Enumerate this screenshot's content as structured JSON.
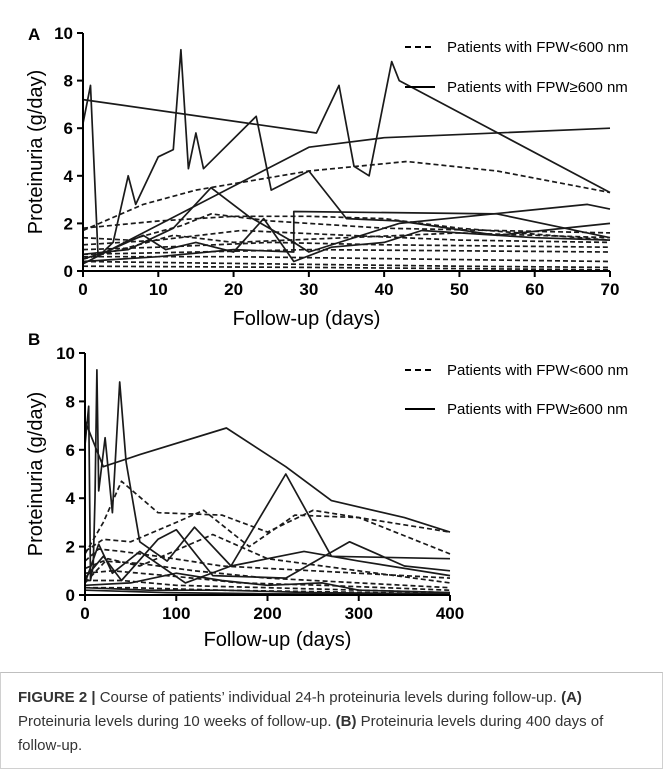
{
  "chart_data": [
    {
      "type": "line",
      "panel_label": "A",
      "xlabel": "Follow-up (days)",
      "ylabel": "Proteinuria (g/day)",
      "xlim": [
        0,
        70
      ],
      "ylim": [
        0,
        10
      ],
      "xticks": [
        "0",
        "10",
        "20",
        "30",
        "40",
        "50",
        "60",
        "70"
      ],
      "yticks": [
        "0",
        "2",
        "4",
        "6",
        "8",
        "10"
      ],
      "legend_position": "top-right",
      "legend": [
        {
          "label": "Patients with FPW<600 nm",
          "style": "dashed"
        },
        {
          "label": "Patients with FPW≥600 nm",
          "style": "solid"
        }
      ],
      "series": [
        {
          "style": "dashed",
          "points": [
            [
              0,
              1.8
            ],
            [
              10,
              2.1
            ],
            [
              20,
              2.3
            ],
            [
              30,
              2.3
            ],
            [
              40,
              2.2
            ],
            [
              50,
              1.8
            ],
            [
              70,
              1.3
            ]
          ]
        },
        {
          "style": "dashed",
          "points": [
            [
              0,
              1.7
            ],
            [
              8,
              2.8
            ],
            [
              15,
              3.4
            ],
            [
              30,
              4.2
            ],
            [
              43,
              4.6
            ],
            [
              55,
              4.2
            ],
            [
              70,
              3.3
            ]
          ]
        },
        {
          "style": "dashed",
          "points": [
            [
              0,
              1.4
            ],
            [
              6,
              1.3
            ],
            [
              13,
              1.9
            ],
            [
              17,
              2.4
            ],
            [
              25,
              2.1
            ],
            [
              40,
              1.8
            ],
            [
              70,
              1.6
            ]
          ]
        },
        {
          "style": "dashed",
          "points": [
            [
              0,
              1.1
            ],
            [
              10,
              1.3
            ],
            [
              21,
              1.7
            ],
            [
              35,
              1.5
            ],
            [
              50,
              1.3
            ],
            [
              70,
              1.2
            ]
          ]
        },
        {
          "style": "dashed",
          "points": [
            [
              0,
              0.9
            ],
            [
              10,
              1.0
            ],
            [
              25,
              1.2
            ],
            [
              40,
              1.1
            ],
            [
              70,
              1.0
            ]
          ]
        },
        {
          "style": "dashed",
          "points": [
            [
              0,
              0.7
            ],
            [
              15,
              0.8
            ],
            [
              30,
              0.9
            ],
            [
              70,
              0.8
            ]
          ]
        },
        {
          "style": "dashed",
          "points": [
            [
              0,
              0.6
            ],
            [
              20,
              0.6
            ],
            [
              45,
              0.5
            ],
            [
              70,
              0.4
            ]
          ]
        },
        {
          "style": "dashed",
          "points": [
            [
              0,
              0.4
            ],
            [
              25,
              0.3
            ],
            [
              50,
              0.2
            ],
            [
              70,
              0.15
            ]
          ]
        },
        {
          "style": "dashed",
          "points": [
            [
              0,
              0.2
            ],
            [
              30,
              0.15
            ],
            [
              70,
              0.05
            ]
          ]
        },
        {
          "style": "dashed",
          "points": [
            [
              0,
              0.5
            ],
            [
              5,
              0.9
            ],
            [
              12,
              1.5
            ],
            [
              20,
              1.2
            ],
            [
              35,
              1.4
            ],
            [
              50,
              1.6
            ],
            [
              70,
              1.4
            ]
          ]
        },
        {
          "style": "solid",
          "points": [
            [
              0,
              7.2
            ],
            [
              31,
              5.8
            ],
            [
              34,
              7.8
            ],
            [
              36,
              4.4
            ],
            [
              38,
              4.0
            ],
            [
              41,
              8.8
            ],
            [
              42,
              8.0
            ],
            [
              70,
              3.3
            ]
          ]
        },
        {
          "style": "solid",
          "points": [
            [
              0,
              6.2
            ],
            [
              1,
              7.8
            ],
            [
              2,
              0.6
            ],
            [
              4,
              1.2
            ],
            [
              6,
              4.0
            ],
            [
              7,
              2.8
            ],
            [
              10,
              4.8
            ],
            [
              12,
              5.1
            ],
            [
              13,
              9.3
            ],
            [
              14,
              4.3
            ],
            [
              15,
              5.8
            ],
            [
              16,
              4.3
            ],
            [
              23,
              6.5
            ],
            [
              25,
              3.4
            ],
            [
              30,
              4.2
            ],
            [
              35,
              2.2
            ],
            [
              42,
              2.1
            ],
            [
              55,
              1.5
            ],
            [
              70,
              2.0
            ]
          ]
        },
        {
          "style": "solid",
          "points": [
            [
              0,
              0.5
            ],
            [
              3,
              0.8
            ],
            [
              8,
              1.5
            ],
            [
              11,
              0.9
            ],
            [
              15,
              1.2
            ],
            [
              20,
              0.8
            ],
            [
              24,
              2.2
            ],
            [
              28,
              0.4
            ],
            [
              33,
              1.0
            ],
            [
              40,
              1.2
            ],
            [
              45,
              1.7
            ],
            [
              60,
              1.4
            ],
            [
              70,
              1.3
            ]
          ]
        },
        {
          "style": "solid",
          "points": [
            [
              0,
              0.7
            ],
            [
              6,
              0.9
            ],
            [
              12,
              1.8
            ],
            [
              17,
              3.5
            ],
            [
              22,
              2.3
            ],
            [
              28,
              1.2
            ],
            [
              30,
              0.8
            ],
            [
              42,
              2.0
            ],
            [
              67,
              2.8
            ],
            [
              70,
              2.6
            ]
          ]
        },
        {
          "style": "solid",
          "points": [
            [
              0,
              0.4
            ],
            [
              10,
              0.6
            ],
            [
              20,
              0.9
            ],
            [
              28,
              0.8
            ],
            [
              28,
              2.5
            ],
            [
              55,
              2.4
            ],
            [
              70,
              1.4
            ]
          ]
        },
        {
          "style": "solid",
          "points": [
            [
              0,
              0.3
            ],
            [
              30,
              5.2
            ],
            [
              40,
              5.6
            ],
            [
              70,
              6.0
            ]
          ]
        }
      ]
    },
    {
      "type": "line",
      "panel_label": "B",
      "xlabel": "Follow-up (days)",
      "ylabel": "Proteinuria (g/day)",
      "xlim": [
        0,
        400
      ],
      "ylim": [
        0,
        10
      ],
      "xticks": [
        "0",
        "100",
        "200",
        "300",
        "400"
      ],
      "yticks": [
        "0",
        "2",
        "4",
        "6",
        "8",
        "10"
      ],
      "legend_position": "top-right",
      "legend": [
        {
          "label": "Patients with FPW<600 nm",
          "style": "dashed"
        },
        {
          "label": "Patients with FPW≥600 nm",
          "style": "solid"
        }
      ],
      "series": [
        {
          "style": "dashed",
          "points": [
            [
              0,
              1.7
            ],
            [
              20,
              3.0
            ],
            [
              40,
              4.7
            ],
            [
              80,
              3.4
            ],
            [
              150,
              3.3
            ],
            [
              200,
              2.6
            ],
            [
              250,
              3.5
            ],
            [
              400,
              2.6
            ]
          ]
        },
        {
          "style": "dashed",
          "points": [
            [
              0,
              1.8
            ],
            [
              20,
              2.3
            ],
            [
              50,
              2.2
            ],
            [
              100,
              3.0
            ],
            [
              130,
              3.5
            ],
            [
              180,
              2.0
            ],
            [
              230,
              3.3
            ],
            [
              300,
              3.2
            ],
            [
              400,
              1.7
            ]
          ]
        },
        {
          "style": "dashed",
          "points": [
            [
              0,
              1.4
            ],
            [
              15,
              1.9
            ],
            [
              40,
              1.8
            ],
            [
              80,
              1.6
            ],
            [
              150,
              1.2
            ],
            [
              250,
              1.0
            ],
            [
              400,
              0.7
            ]
          ]
        },
        {
          "style": "dashed",
          "points": [
            [
              0,
              1.1
            ],
            [
              20,
              1.4
            ],
            [
              60,
              1.3
            ],
            [
              120,
              1.0
            ],
            [
              200,
              0.7
            ],
            [
              300,
              0.5
            ],
            [
              400,
              0.3
            ]
          ]
        },
        {
          "style": "dashed",
          "points": [
            [
              0,
              0.9
            ],
            [
              30,
              1.0
            ],
            [
              90,
              0.8
            ],
            [
              170,
              0.5
            ],
            [
              260,
              0.4
            ],
            [
              400,
              0.2
            ]
          ]
        },
        {
          "style": "dashed",
          "points": [
            [
              0,
              0.6
            ],
            [
              40,
              0.6
            ],
            [
              100,
              0.4
            ],
            [
              200,
              0.3
            ],
            [
              400,
              0.1
            ]
          ]
        },
        {
          "style": "dashed",
          "points": [
            [
              0,
              0.3
            ],
            [
              50,
              0.3
            ],
            [
              150,
              0.2
            ],
            [
              400,
              0.05
            ]
          ]
        },
        {
          "style": "dashed",
          "points": [
            [
              0,
              0.5
            ],
            [
              10,
              0.9
            ],
            [
              25,
              1.5
            ],
            [
              60,
              1.2
            ],
            [
              140,
              2.5
            ],
            [
              200,
              1.5
            ],
            [
              260,
              1.2
            ],
            [
              400,
              0.5
            ]
          ]
        },
        {
          "style": "solid",
          "points": [
            [
              0,
              7.2
            ],
            [
              20,
              5.3
            ],
            [
              60,
              5.8
            ],
            [
              155,
              6.9
            ],
            [
              220,
              5.3
            ],
            [
              270,
              3.9
            ],
            [
              350,
              3.2
            ],
            [
              400,
              2.6
            ]
          ]
        },
        {
          "style": "solid",
          "points": [
            [
              0,
              6.2
            ],
            [
              4,
              7.8
            ],
            [
              6,
              0.6
            ],
            [
              9,
              1.2
            ],
            [
              11,
              4.0
            ],
            [
              13,
              9.3
            ],
            [
              15,
              4.3
            ],
            [
              22,
              6.5
            ],
            [
              30,
              3.4
            ],
            [
              38,
              8.8
            ],
            [
              45,
              5.5
            ],
            [
              60,
              2.2
            ],
            [
              90,
              1.4
            ],
            [
              120,
              2.8
            ],
            [
              160,
              1.2
            ],
            [
              220,
              5.0
            ],
            [
              270,
              1.6
            ],
            [
              400,
              1.5
            ]
          ]
        },
        {
          "style": "solid",
          "points": [
            [
              0,
              0.5
            ],
            [
              15,
              2.1
            ],
            [
              30,
              0.9
            ],
            [
              60,
              1.8
            ],
            [
              110,
              0.5
            ],
            [
              160,
              1.2
            ],
            [
              200,
              1.5
            ],
            [
              240,
              1.8
            ],
            [
              300,
              1.4
            ],
            [
              400,
              0.8
            ]
          ]
        },
        {
          "style": "solid",
          "points": [
            [
              0,
              0.7
            ],
            [
              20,
              1.6
            ],
            [
              40,
              0.6
            ],
            [
              80,
              2.3
            ],
            [
              100,
              2.7
            ],
            [
              140,
              0.8
            ],
            [
              220,
              0.7
            ],
            [
              290,
              2.2
            ],
            [
              350,
              1.2
            ],
            [
              400,
              1.0
            ]
          ]
        },
        {
          "style": "solid",
          "points": [
            [
              0,
              0.4
            ],
            [
              50,
              0.5
            ],
            [
              100,
              0.9
            ],
            [
              150,
              0.6
            ],
            [
              200,
              0.4
            ],
            [
              260,
              0.5
            ],
            [
              300,
              0.2
            ],
            [
              400,
              0.1
            ]
          ]
        },
        {
          "style": "solid",
          "points": [
            [
              0,
              0.3
            ],
            [
              70,
              0.2
            ],
            [
              150,
              0.2
            ],
            [
              250,
              0.1
            ],
            [
              400,
              0.05
            ]
          ]
        },
        {
          "style": "solid",
          "points": [
            [
              0,
              0.2
            ],
            [
              90,
              0.1
            ],
            [
              200,
              0.05
            ],
            [
              400,
              0.02
            ]
          ]
        }
      ]
    }
  ],
  "caption": {
    "label": "FIGURE 2 |",
    "text1": " Course of patients’ individual 24-h proteinuria levels during follow-up. ",
    "refA": "(A)",
    "text2": " Proteinuria levels during 10 weeks of follow-up. ",
    "refB": "(B)",
    "text3": " Proteinuria levels during 400 days of follow-up."
  }
}
